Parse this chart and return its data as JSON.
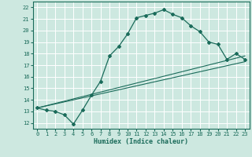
{
  "xlabel": "Humidex (Indice chaleur)",
  "xlim": [
    -0.5,
    23.5
  ],
  "ylim": [
    11.5,
    22.5
  ],
  "xticks": [
    0,
    1,
    2,
    3,
    4,
    5,
    6,
    7,
    8,
    9,
    10,
    11,
    12,
    13,
    14,
    15,
    16,
    17,
    18,
    19,
    20,
    21,
    22,
    23
  ],
  "yticks": [
    12,
    13,
    14,
    15,
    16,
    17,
    18,
    19,
    20,
    21,
    22
  ],
  "bg_color": "#cde8e0",
  "line_color": "#1a6b5a",
  "grid_color": "#ffffff",
  "curve1_x": [
    0,
    1,
    2,
    3,
    4,
    5,
    6,
    7,
    8,
    9,
    10,
    11,
    12,
    13,
    14,
    15,
    16,
    17,
    18,
    19,
    20,
    21,
    22,
    23
  ],
  "curve1_y": [
    13.3,
    13.1,
    13.0,
    12.7,
    11.9,
    13.1,
    14.4,
    15.6,
    17.8,
    18.6,
    19.7,
    21.1,
    21.3,
    21.5,
    21.8,
    21.4,
    21.1,
    20.4,
    19.9,
    19.0,
    18.8,
    17.5,
    18.0,
    17.5
  ],
  "curve2_x": [
    0,
    23
  ],
  "curve2_y": [
    13.3,
    17.8
  ],
  "curve3_x": [
    0,
    23
  ],
  "curve3_y": [
    13.3,
    17.3
  ]
}
